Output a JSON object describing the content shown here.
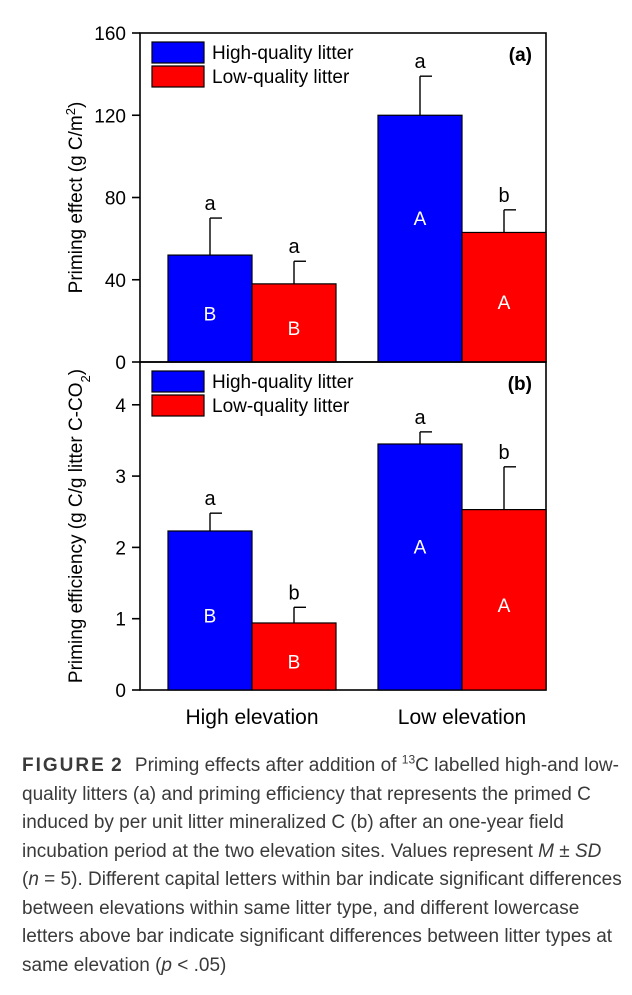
{
  "chart_data": [
    {
      "type": "bar",
      "panel_label": "(a)",
      "categories": [
        "High elevation",
        "Low elevation"
      ],
      "ylabel_main": "Priming effect (g C/m",
      "ylabel_sup": "2",
      "ylabel_end": ")",
      "ylim": [
        0,
        160
      ],
      "yticks": [
        0,
        40,
        80,
        120,
        160
      ],
      "legend": {
        "placement": "top-left"
      },
      "series": [
        {
          "name": "High-quality litter",
          "color": "#0000ff",
          "values": [
            52,
            120
          ],
          "sd": [
            18,
            19
          ],
          "above_letters": [
            "a",
            "a"
          ],
          "inside_letters": [
            "B",
            "A"
          ]
        },
        {
          "name": "Low-quality litter",
          "color": "#ff0000",
          "values": [
            38,
            63
          ],
          "sd": [
            11,
            11
          ],
          "above_letters": [
            "a",
            "b"
          ],
          "inside_letters": [
            "B",
            "A"
          ]
        }
      ]
    },
    {
      "type": "bar",
      "panel_label": "(b)",
      "categories": [
        "High elevation",
        "Low elevation"
      ],
      "ylabel_main": "Priming efficiency (g C/g litter C-CO",
      "ylabel_sub": "2",
      "ylabel_end": ")",
      "ylim": [
        0,
        4.6
      ],
      "yticks": [
        0,
        1,
        2,
        3,
        4
      ],
      "legend": {
        "placement": "top-left"
      },
      "series": [
        {
          "name": "High-quality litter",
          "color": "#0000ff",
          "values": [
            2.23,
            3.45
          ],
          "sd": [
            0.25,
            0.17
          ],
          "above_letters": [
            "a",
            "a"
          ],
          "inside_letters": [
            "B",
            "A"
          ]
        },
        {
          "name": "Low-quality litter",
          "color": "#ff0000",
          "values": [
            0.94,
            2.53
          ],
          "sd": [
            0.22,
            0.6
          ],
          "above_letters": [
            "b",
            "b"
          ],
          "inside_letters": [
            "B",
            "A"
          ]
        }
      ]
    }
  ],
  "caption": {
    "label": "FIGURE",
    "number": "2",
    "t1": "Priming effects after addition of ",
    "sup": "13",
    "t2": "C labelled high-and low-quality litters (a) and priming efficiency that represents the primed C induced by per unit litter mineralized C (b) after an one-year field incubation period at the two elevation sites. Values represent ",
    "m": "M",
    "pm": " ± ",
    "sd": "SD",
    "t3": " (",
    "n": "n",
    "t4": " = 5). Different capital letters within bar indicate significant differences between elevations within same litter type, and different lowercase letters above bar indicate significant differences between litter types at same elevation (",
    "p": "p",
    "t5": " < .05)"
  }
}
